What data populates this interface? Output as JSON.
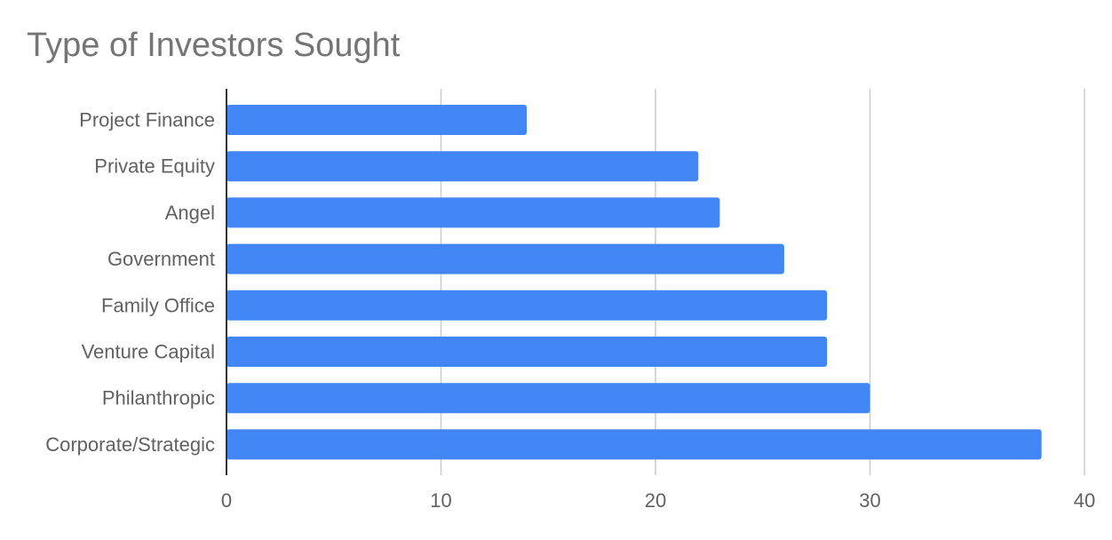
{
  "chart_data": {
    "type": "bar",
    "orientation": "horizontal",
    "title": "Type of Investors Sought",
    "xlabel": "",
    "ylabel": "",
    "categories": [
      "Project Finance",
      "Private Equity",
      "Angel",
      "Government",
      "Family Office",
      "Venture Capital",
      "Philanthropic",
      "Corporate/Strategic"
    ],
    "values": [
      14,
      22,
      23,
      26,
      28,
      28,
      30,
      38
    ],
    "xlim": [
      0,
      40
    ],
    "xticks": [
      0,
      10,
      20,
      30,
      40
    ],
    "grid": true,
    "legend": "none",
    "colors": {
      "bar": "#4285f4",
      "grid": "#cccccc",
      "axis": "#333333",
      "text": "#616161",
      "title": "#757575"
    }
  }
}
